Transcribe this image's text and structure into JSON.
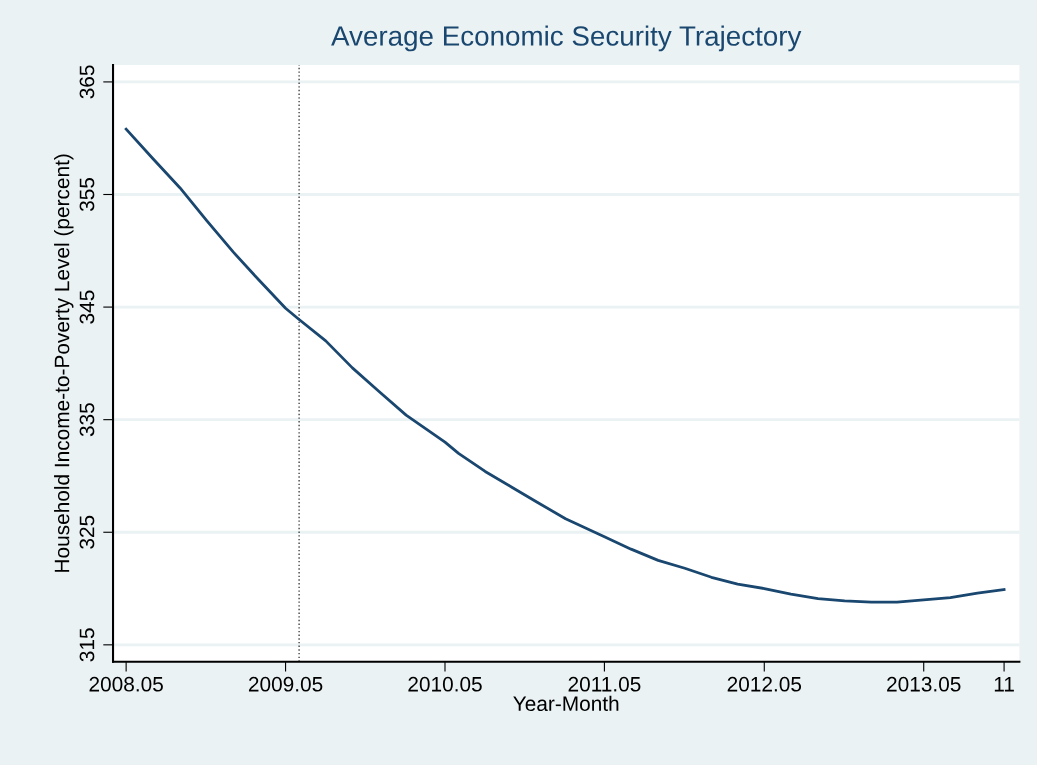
{
  "chart_data": {
    "type": "line",
    "title": "Average Economic Security Trajectory",
    "xlabel": "Year-Month",
    "ylabel": "Household Income-to-Poverty Level (percent)",
    "x": [
      "2008-05",
      "2008-07",
      "2008-09",
      "2008-11",
      "2009-01",
      "2009-03",
      "2009-05",
      "2009-06",
      "2009-08",
      "2009-10",
      "2009-12",
      "2010-02",
      "2010-05",
      "2010-06",
      "2010-08",
      "2010-10",
      "2010-12",
      "2011-02",
      "2011-05",
      "2011-07",
      "2011-09",
      "2011-11",
      "2012-01",
      "2012-03",
      "2012-05",
      "2012-07",
      "2012-09",
      "2012-11",
      "2013-01",
      "2013-03",
      "2013-05",
      "2013-07",
      "2013-09",
      "2013-11"
    ],
    "series": [
      {
        "color": "#1a476f",
        "values": [
          360.8,
          358.2,
          355.6,
          352.7,
          349.9,
          347.4,
          344.9,
          343.9,
          342.0,
          339.6,
          337.5,
          335.4,
          333.0,
          332.0,
          330.4,
          329.0,
          327.6,
          326.2,
          324.6,
          323.5,
          322.5,
          321.8,
          321.0,
          320.4,
          320.0,
          319.5,
          319.1,
          318.9,
          318.8,
          318.8,
          319.0,
          319.2,
          319.6,
          319.9
        ]
      }
    ],
    "xlim": [
      "2008-04-01",
      "2013-12-06"
    ],
    "ylim": [
      313.5,
      366.5
    ],
    "xticks": [
      {
        "value": "2008-05",
        "label": "2008.05"
      },
      {
        "value": "2009-05",
        "label": "2009.05"
      },
      {
        "value": "2010-05",
        "label": "2010.05"
      },
      {
        "value": "2011-05",
        "label": "2011.05"
      },
      {
        "value": "2012-05",
        "label": "2012.05"
      },
      {
        "value": "2013-05",
        "label": "2013.05"
      },
      {
        "value": "2013-11",
        "label": "11"
      }
    ],
    "yticks": [
      315,
      325,
      335,
      345,
      355,
      365
    ],
    "ref_lines": [
      {
        "axis": "x",
        "value": "2009-06",
        "color": "#404040",
        "line_style": "dotted"
      }
    ],
    "grid": "y",
    "legend": false,
    "marker": "none",
    "line_style": "solid"
  }
}
